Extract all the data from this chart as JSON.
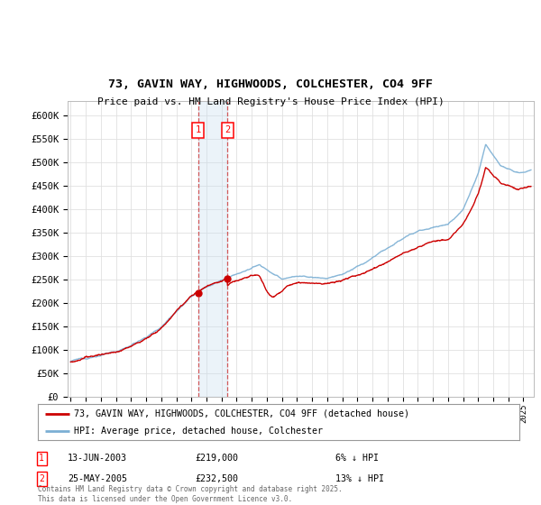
{
  "title": "73, GAVIN WAY, HIGHWOODS, COLCHESTER, CO4 9FF",
  "subtitle": "Price paid vs. HM Land Registry's House Price Index (HPI)",
  "ylabel_ticks": [
    "£0",
    "£50K",
    "£100K",
    "£150K",
    "£200K",
    "£250K",
    "£300K",
    "£350K",
    "£400K",
    "£450K",
    "£500K",
    "£550K",
    "£600K"
  ],
  "ytick_values": [
    0,
    50000,
    100000,
    150000,
    200000,
    250000,
    300000,
    350000,
    400000,
    450000,
    500000,
    550000,
    600000
  ],
  "ylim": [
    0,
    630000
  ],
  "xlim_start": 1994.8,
  "xlim_end": 2025.7,
  "red_line_color": "#cc0000",
  "blue_line_color": "#7bafd4",
  "transaction1_x": 2003.44,
  "transaction1_y": 219000,
  "transaction1_label": "1",
  "transaction1_date": "13-JUN-2003",
  "transaction1_price": "£219,000",
  "transaction1_hpi": "6% ↓ HPI",
  "transaction2_x": 2005.38,
  "transaction2_y": 232500,
  "transaction2_label": "2",
  "transaction2_date": "25-MAY-2005",
  "transaction2_price": "£232,500",
  "transaction2_hpi": "13% ↓ HPI",
  "shade_color": "#c8ddf0",
  "shade_alpha": 0.35,
  "legend_red_label": "73, GAVIN WAY, HIGHWOODS, COLCHESTER, CO4 9FF (detached house)",
  "legend_blue_label": "HPI: Average price, detached house, Colchester",
  "footnote": "Contains HM Land Registry data © Crown copyright and database right 2025.\nThis data is licensed under the Open Government Licence v3.0.",
  "background_color": "#ffffff",
  "grid_color": "#e0e0e0"
}
